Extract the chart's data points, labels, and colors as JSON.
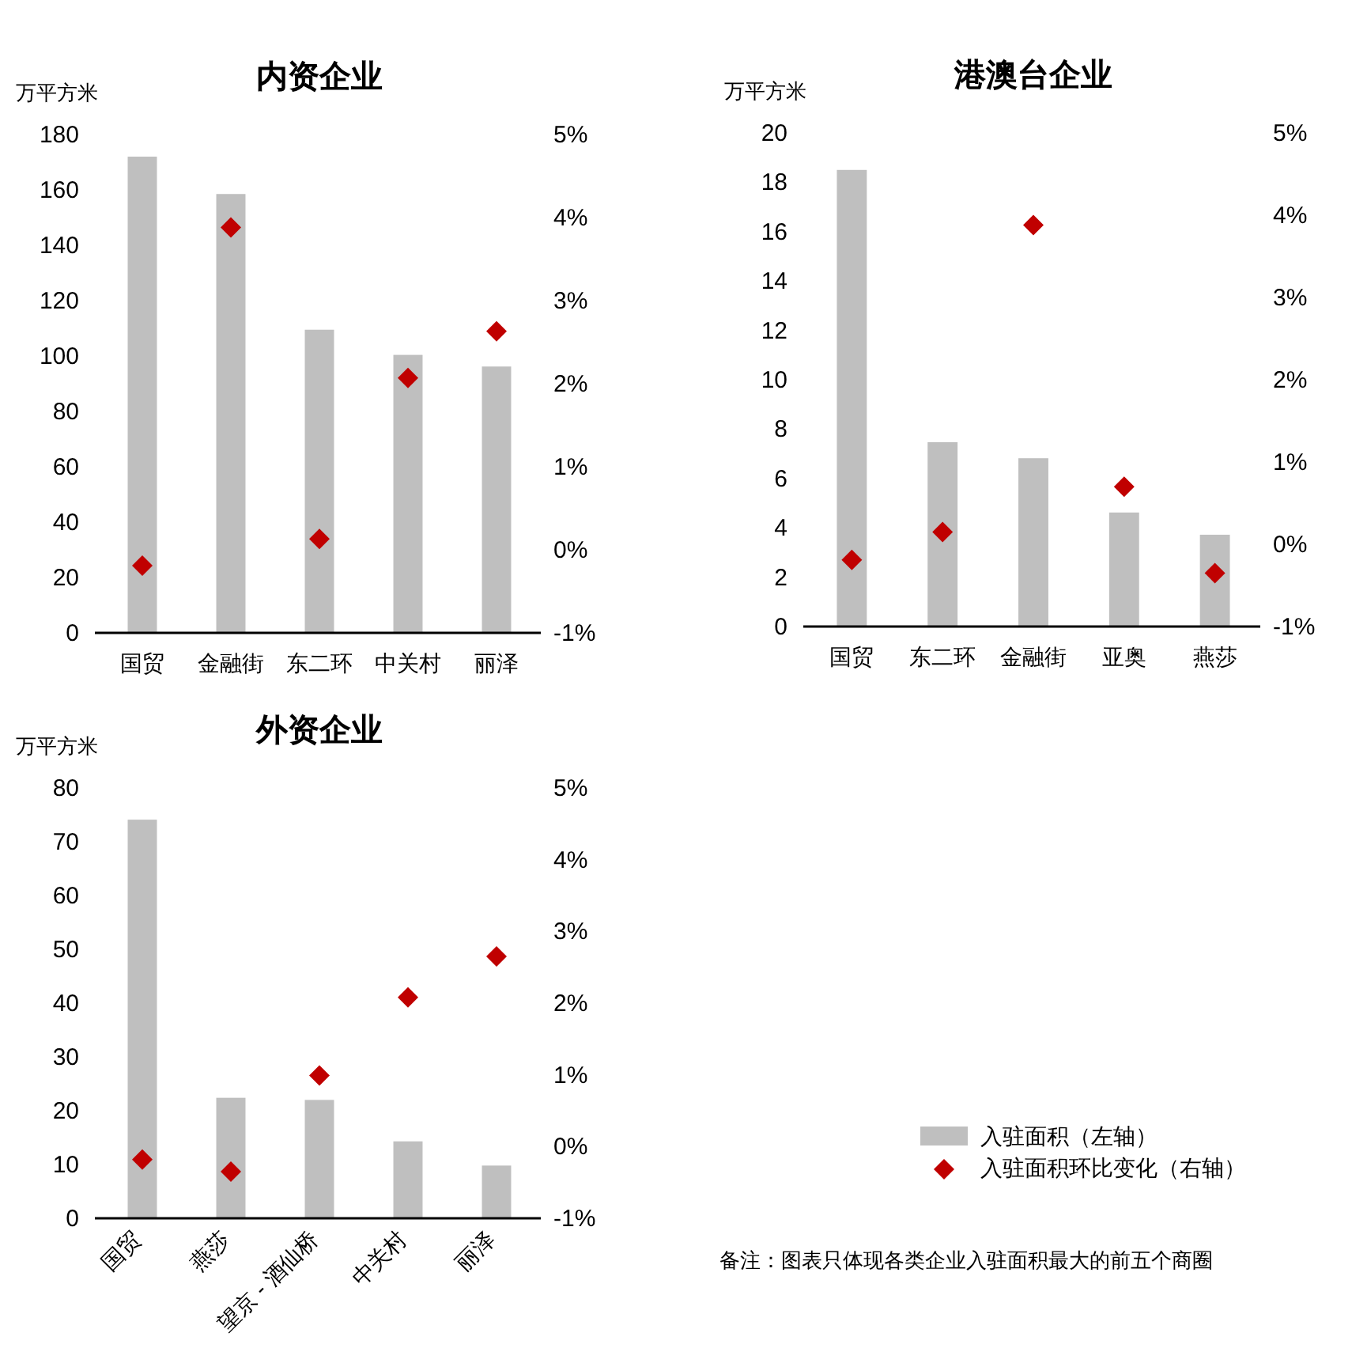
{
  "chart_data": [
    {
      "type": "bar",
      "title": "内资企业",
      "ylabel": "万平方米",
      "categories": [
        "国贸",
        "金融街",
        "东二环",
        "中关村",
        "丽泽"
      ],
      "marker": "diamond",
      "grid": false,
      "series": [
        {
          "color": "#bfbfbf",
          "values": [
            172,
            158.5,
            109.5,
            100.4,
            96.2
          ]
        },
        {
          "type": "scatter",
          "axis": "y2",
          "color": "#c00000",
          "values": [
            -0.19,
            3.88,
            0.13,
            2.07,
            2.63
          ]
        }
      ],
      "ylim": [
        0,
        180
      ],
      "yticks": [
        0,
        20,
        40,
        60,
        80,
        100,
        120,
        140,
        160,
        180
      ],
      "y2lim": [
        -1,
        5
      ],
      "y2ticks": [
        {
          "value": -1,
          "label": "-1%"
        },
        {
          "value": 0,
          "label": "0%"
        },
        {
          "value": 1,
          "label": "1%"
        },
        {
          "value": 2,
          "label": "2%"
        },
        {
          "value": 3,
          "label": "3%"
        },
        {
          "value": 4,
          "label": "4%"
        },
        {
          "value": 5,
          "label": "5%"
        }
      ]
    },
    {
      "type": "bar",
      "title": "港澳台企业",
      "ylabel": "万平方米",
      "categories": [
        "国贸",
        "东二环",
        "金融街",
        "亚奥",
        "燕莎"
      ],
      "marker": "diamond",
      "grid": false,
      "series": [
        {
          "color": "#bfbfbf",
          "values": [
            18.5,
            7.47,
            6.82,
            4.62,
            3.72
          ]
        },
        {
          "type": "scatter",
          "axis": "y2",
          "color": "#c00000",
          "values": [
            -0.19,
            0.15,
            3.88,
            0.7,
            -0.35
          ]
        }
      ],
      "ylim": [
        0,
        20
      ],
      "yticks": [
        0,
        2,
        4,
        6,
        8,
        10,
        12,
        14,
        16,
        18,
        20
      ],
      "y2lim": [
        -1,
        5
      ],
      "y2ticks": [
        {
          "value": -1,
          "label": "-1%"
        },
        {
          "value": 0,
          "label": "0%"
        },
        {
          "value": 1,
          "label": "1%"
        },
        {
          "value": 2,
          "label": "2%"
        },
        {
          "value": 3,
          "label": "3%"
        },
        {
          "value": 4,
          "label": "4%"
        },
        {
          "value": 5,
          "label": "5%"
        }
      ]
    },
    {
      "type": "bar",
      "title": "外资企业",
      "ylabel": "万平方米",
      "categories": [
        "国贸",
        "燕莎",
        "望京 - 酒仙桥",
        "中关村",
        "丽泽"
      ],
      "marker": "diamond",
      "grid": false,
      "legend": "right",
      "series": [
        {
          "name": "入驻面积（左轴）",
          "color": "#bfbfbf",
          "values": [
            74.1,
            22.4,
            22,
            14.3,
            9.8
          ]
        },
        {
          "type": "scatter",
          "name": "入驻面积环比变化（右轴）",
          "axis": "y2",
          "color": "#c00000",
          "values": [
            -0.18,
            -0.35,
            0.99,
            2.08,
            2.65
          ]
        }
      ],
      "ylim": [
        0,
        80
      ],
      "yticks": [
        0,
        10,
        20,
        30,
        40,
        50,
        60,
        70,
        80
      ],
      "y2lim": [
        -1,
        5
      ],
      "y2ticks": [
        {
          "value": -1,
          "label": "-1%"
        },
        {
          "value": 0,
          "label": "0%"
        },
        {
          "value": 1,
          "label": "1%"
        },
        {
          "value": 2,
          "label": "2%"
        },
        {
          "value": 3,
          "label": "3%"
        },
        {
          "value": 4,
          "label": "4%"
        },
        {
          "value": 5,
          "label": "5%"
        }
      ],
      "annotations": [
        "备注：图表只体现各类企业入驻面积最大的前五个商圈"
      ]
    }
  ]
}
